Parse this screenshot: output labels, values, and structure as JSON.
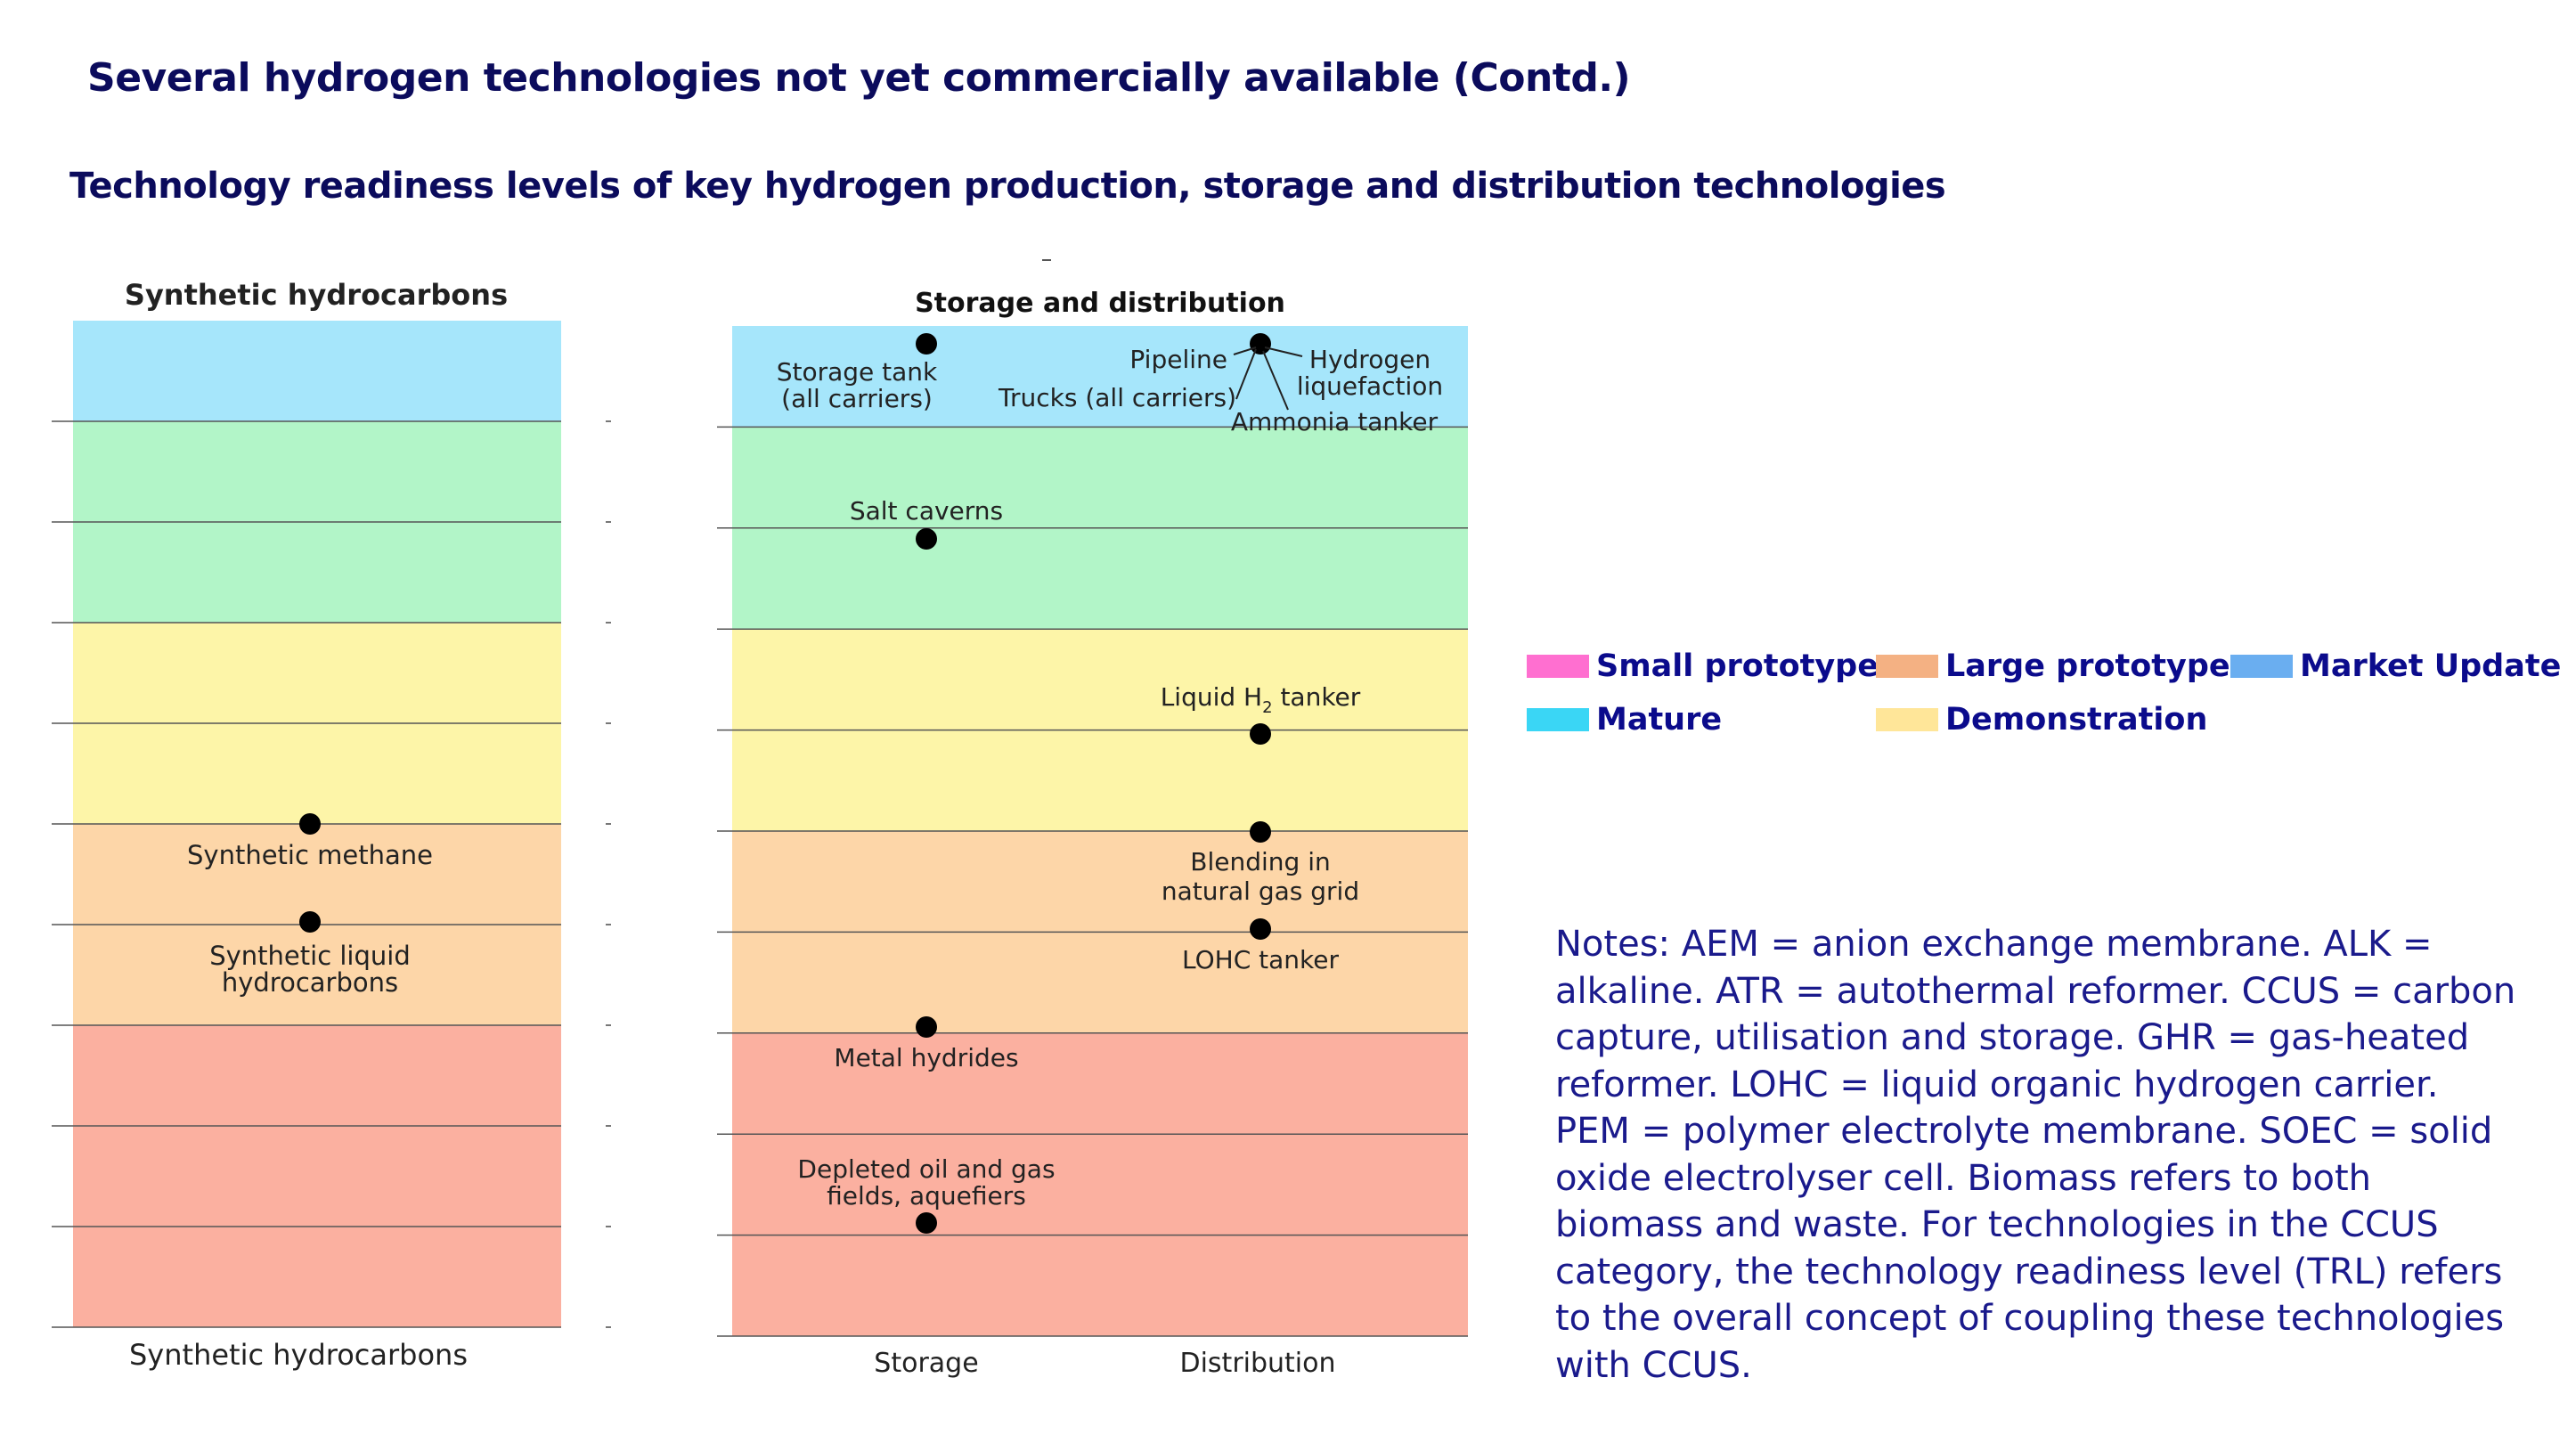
{
  "title": "Several hydrogen technologies not yet commercially available (Contd.)",
  "subtitle": "Technology readiness levels of key hydrogen production, storage and distribution technologies",
  "legend": [
    {
      "label": "Small prototype",
      "color": "#ff6fd0"
    },
    {
      "label": "Large prototype",
      "color": "#f4b183"
    },
    {
      "label": "Market Update",
      "color": "#6aaef0"
    },
    {
      "label": "Mature",
      "color": "#3ad6f5"
    },
    {
      "label": "Demonstration",
      "color": "#ffe699"
    }
  ],
  "notes": "Notes: AEM = anion exchange membrane. ALK = alkaline. ATR = autothermal reformer. CCUS = carbon capture, utilisation and storage. GHR = gas-heated reformer. LOHC = liquid organic hydrogen carrier. PEM = polymer electrolyte membrane. SOEC = solid oxide electrolyser cell. Biomass refers to both biomass and waste. For technologies in the CCUS category, the technology readiness level (TRL) refers to the overall concept of coupling these technologies with CCUS.",
  "chart_data": [
    {
      "type": "scatter",
      "title": "Synthetic hydrocarbons",
      "xlabel": "Synthetic hydrocarbons",
      "ylim": [
        1,
        11
      ],
      "bands": [
        {
          "from": 10,
          "to": 11,
          "color": "#a6e6fb"
        },
        {
          "from": 8,
          "to": 10,
          "color": "#b2f5c8"
        },
        {
          "from": 6,
          "to": 8,
          "color": "#fdf5a8"
        },
        {
          "from": 4,
          "to": 6,
          "color": "#fdd6a8"
        },
        {
          "from": 1,
          "to": 4,
          "color": "#fbb0a0"
        }
      ],
      "points": [
        {
          "label": "Synthetic methane",
          "x": "Synthetic hydrocarbons",
          "y": 6
        },
        {
          "label": "Synthetic liquid\nhydrocarbons",
          "x": "Synthetic hydrocarbons",
          "y": 5
        }
      ]
    },
    {
      "type": "scatter",
      "title": "Storage and distribution",
      "categories": [
        "Storage",
        "Distribution"
      ],
      "ylim": [
        1,
        11
      ],
      "bands": [
        {
          "from": 10,
          "to": 11,
          "color": "#a6e6fb"
        },
        {
          "from": 8,
          "to": 10,
          "color": "#b2f5c8"
        },
        {
          "from": 6,
          "to": 8,
          "color": "#fdf5a8"
        },
        {
          "from": 4,
          "to": 6,
          "color": "#fdd6a8"
        },
        {
          "from": 1,
          "to": 4,
          "color": "#fbb0a0"
        }
      ],
      "points": [
        {
          "label": "Storage tank\n(all carriers)",
          "x": "Storage",
          "y": 10
        },
        {
          "label": "Salt caverns",
          "x": "Storage",
          "y": 8
        },
        {
          "label": "Metal hydrides",
          "x": "Storage",
          "y": 4
        },
        {
          "label": "Depleted oil and gas\nfields, aquefiers",
          "x": "Storage",
          "y": 2
        },
        {
          "label": "Pipeline|Trucks (all carriers)|Hydrogen\nliquefaction|Ammonia tanker",
          "x": "Distribution",
          "y": 10
        },
        {
          "label": "Liquid H2 tanker",
          "x": "Distribution",
          "y": 7
        },
        {
          "label": "Blending in\nnatural gas grid",
          "x": "Distribution",
          "y": 6
        },
        {
          "label": "LOHC tanker",
          "x": "Distribution",
          "y": 5
        }
      ]
    }
  ]
}
